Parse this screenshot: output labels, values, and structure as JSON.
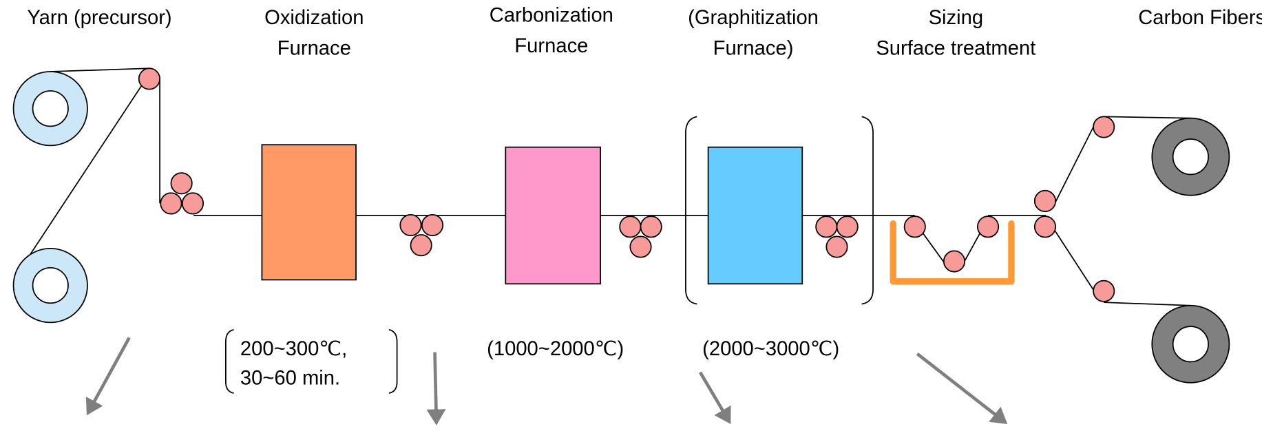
{
  "stages": [
    {
      "label": [
        "Yarn (precursor)"
      ]
    },
    {
      "label": [
        "Oxidization",
        "Furnace"
      ]
    },
    {
      "label": [
        "Carbonization",
        "Furnace"
      ]
    },
    {
      "label": [
        "(Graphitization",
        "Furnace)"
      ]
    },
    {
      "label": [
        "Sizing",
        "Surface treatment"
      ]
    },
    {
      "label": [
        "Carbon Fibers"
      ]
    }
  ],
  "conditions": {
    "oxidization": [
      "200~300℃,",
      "30~60 min."
    ],
    "carbonization": "(1000~2000℃)",
    "graphitization": "(2000~3000℃)"
  }
}
